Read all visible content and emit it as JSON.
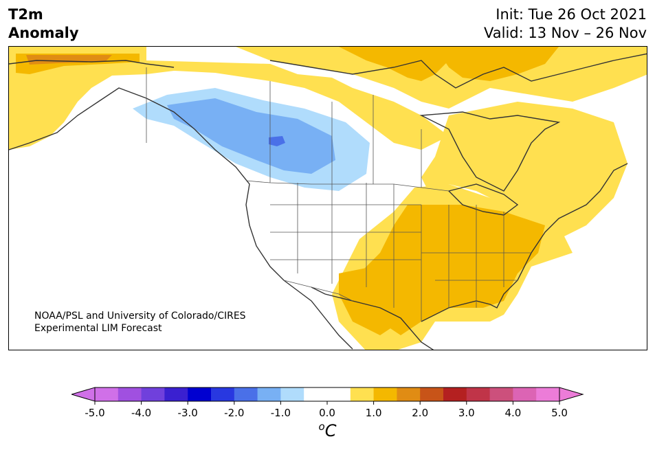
{
  "header": {
    "title_line1": "T2m",
    "title_line2": "Anomaly",
    "init": "Init: Tue 26 Oct 2021",
    "valid": "Valid: 13 Nov – 26 Nov"
  },
  "map": {
    "credit_line1": "NOAA/PSL and University of Colorado/CIRES",
    "credit_line2": "Experimental LIM Forecast",
    "coastline_color": "#333333",
    "regions": [
      {
        "name": "Alaska",
        "anomaly": "0.5 to 1.0"
      },
      {
        "name": "Northern Alaska coast",
        "anomaly": "1.5 to 2.5"
      },
      {
        "name": "Western Canada / Northern Rockies",
        "anomaly": "-1.5 to -0.5"
      },
      {
        "name": "Canadian Arctic Archipelago",
        "anomaly": "0.5 to 1.5"
      },
      {
        "name": "Eastern Canada / Quebec",
        "anomaly": "0.5 to 1.0"
      },
      {
        "name": "South-Central and Eastern US",
        "anomaly": "1.0 to 1.5"
      },
      {
        "name": "Western US",
        "anomaly": "-0.5 to 0.5"
      }
    ]
  },
  "colorbar": {
    "unit": "oC",
    "ticks": [
      "-5.0",
      "-4.0",
      "-3.0",
      "-2.0",
      "-1.0",
      "0.0",
      "1.0",
      "2.0",
      "3.0",
      "4.0",
      "5.0"
    ],
    "bins": [
      {
        "range": "-5.0 to -4.5",
        "color": "#d070e8"
      },
      {
        "range": "-4.5 to -4.0",
        "color": "#a050e0"
      },
      {
        "range": "-4.0 to -3.5",
        "color": "#7040dc"
      },
      {
        "range": "-3.5 to -3.0",
        "color": "#3a20d0"
      },
      {
        "range": "-3.0 to -2.5",
        "color": "#0000d0"
      },
      {
        "range": "-2.5 to -2.0",
        "color": "#2838e0"
      },
      {
        "range": "-2.0 to -1.5",
        "color": "#4a70e8"
      },
      {
        "range": "-1.5 to -1.0",
        "color": "#78b0f4"
      },
      {
        "range": "-1.0 to -0.5",
        "color": "#b0dcfc"
      },
      {
        "range": "-0.5 to 0.0",
        "color": "#ffffff"
      },
      {
        "range": "0.0 to 0.5",
        "color": "#ffffff"
      },
      {
        "range": "0.5 to 1.0",
        "color": "#ffe050"
      },
      {
        "range": "1.0 to 1.5",
        "color": "#f4b800"
      },
      {
        "range": "1.5 to 2.0",
        "color": "#e08c14"
      },
      {
        "range": "2.0 to 2.5",
        "color": "#c85418"
      },
      {
        "range": "2.5 to 3.0",
        "color": "#b42020"
      },
      {
        "range": "3.0 to 3.5",
        "color": "#c03448"
      },
      {
        "range": "3.5 to 4.0",
        "color": "#cc507c"
      },
      {
        "range": "4.0 to 4.5",
        "color": "#dc64b4"
      },
      {
        "range": "4.5 to 5.0",
        "color": "#ec7cd8"
      }
    ],
    "under_color": "#d070e8",
    "over_color": "#ec7cd8"
  }
}
